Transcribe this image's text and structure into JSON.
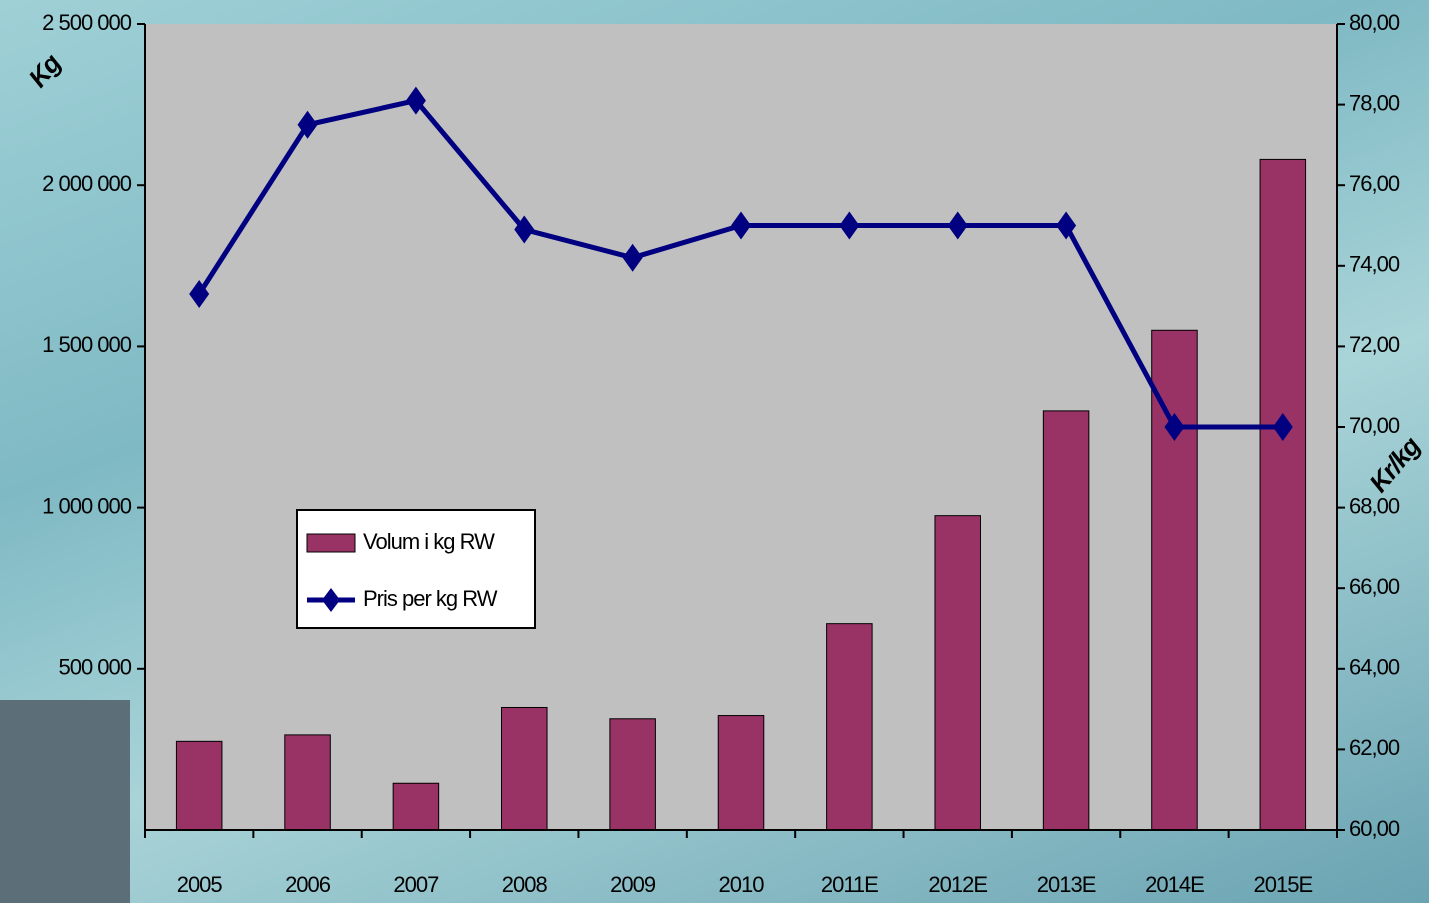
{
  "chart_data": {
    "type": "bar-line",
    "categories": [
      "2005",
      "2006",
      "2007",
      "2008",
      "2009",
      "2010",
      "2011E",
      "2012E",
      "2013E",
      "2014E",
      "2015E"
    ],
    "series": [
      {
        "name": "Volum i kg RW",
        "type": "bar",
        "color": "#993366",
        "values": [
          275000,
          295000,
          145000,
          380000,
          345000,
          355000,
          640000,
          975000,
          1300000,
          1550000,
          2080000
        ]
      },
      {
        "name": "Pris per kg RW",
        "type": "line",
        "axis": "y2",
        "color": "#000080",
        "values": [
          73.3,
          77.5,
          78.1,
          74.9,
          74.2,
          75.0,
          75.0,
          75.0,
          75.0,
          70.0,
          70.0
        ]
      }
    ],
    "ylabel": "Kg",
    "y2label": "Kr/kg",
    "ylim": [
      0,
      2500000
    ],
    "yticks": [
      {
        "value": 500000,
        "label": "500 000"
      },
      {
        "value": 1000000,
        "label": "1 000 000"
      },
      {
        "value": 1500000,
        "label": "1 500 000"
      },
      {
        "value": 2000000,
        "label": "2 000 000"
      },
      {
        "value": 2500000,
        "label": "2 500 000"
      }
    ],
    "y2lim": [
      60,
      80
    ],
    "y2ticks": [
      {
        "value": 60,
        "label": "60,00"
      },
      {
        "value": 62,
        "label": "62,00"
      },
      {
        "value": 64,
        "label": "64,00"
      },
      {
        "value": 66,
        "label": "66,00"
      },
      {
        "value": 68,
        "label": "68,00"
      },
      {
        "value": 70,
        "label": "70,00"
      },
      {
        "value": 72,
        "label": "72,00"
      },
      {
        "value": 74,
        "label": "74,00"
      },
      {
        "value": 76,
        "label": "76,00"
      },
      {
        "value": 78,
        "label": "78,00"
      },
      {
        "value": 80,
        "label": "80,00"
      }
    ],
    "plot_background": "#c0c0c0",
    "legend": "center-left"
  }
}
